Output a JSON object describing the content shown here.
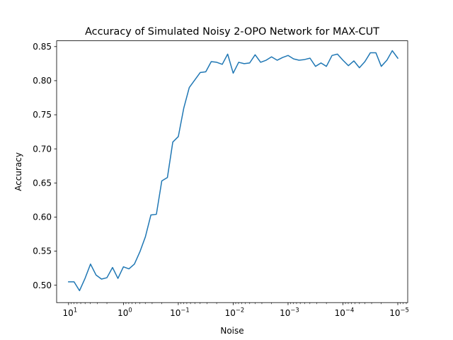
{
  "chart_data": {
    "type": "line",
    "title": "Accuracy of Simulated Noisy 2-OPO Network for MAX-CUT",
    "xlabel": "Noise",
    "ylabel": "Accuracy",
    "x_scale": "log",
    "x_axis_inverted": true,
    "xlim": [
      16.5,
      6.6e-06
    ],
    "ylim": [
      0.4745,
      0.8585
    ],
    "grid": false,
    "legend": "none",
    "line_color": "#1f77b4",
    "x_ticks": [
      {
        "base": "10",
        "exp": "1",
        "value": 10
      },
      {
        "base": "10",
        "exp": "0",
        "value": 1
      },
      {
        "base": "10",
        "exp": "−1",
        "value": 0.1
      },
      {
        "base": "10",
        "exp": "−2",
        "value": 0.01
      },
      {
        "base": "10",
        "exp": "−3",
        "value": 0.001
      },
      {
        "base": "10",
        "exp": "−4",
        "value": 0.0001
      },
      {
        "base": "10",
        "exp": "−5",
        "value": 1e-05
      }
    ],
    "y_ticks": [
      "0.50",
      "0.55",
      "0.60",
      "0.65",
      "0.70",
      "0.75",
      "0.80",
      "0.85"
    ],
    "series": [
      {
        "x": [
          10,
          7.94,
          6.31,
          5.01,
          3.98,
          3.16,
          2.51,
          2.0,
          1.58,
          1.26,
          1.0,
          0.794,
          0.631,
          0.501,
          0.398,
          0.316,
          0.251,
          0.2,
          0.158,
          0.126,
          0.1,
          0.0794,
          0.0631,
          0.0501,
          0.0398,
          0.0316,
          0.0251,
          0.02,
          0.0158,
          0.0126,
          0.01,
          0.00794,
          0.00631,
          0.00501,
          0.00398,
          0.00316,
          0.00251,
          0.002,
          0.00158,
          0.00126,
          0.001,
          0.000794,
          0.000631,
          0.000501,
          0.000398,
          0.000316,
          0.000251,
          0.0002,
          0.000158,
          0.000126,
          0.0001,
          7.94e-05,
          6.31e-05,
          5.01e-05,
          3.98e-05,
          3.16e-05,
          2.51e-05,
          2e-05,
          1.58e-05,
          1.26e-05,
          1e-05
        ],
        "y": [
          0.505,
          0.505,
          0.492,
          0.51,
          0.531,
          0.515,
          0.509,
          0.511,
          0.526,
          0.51,
          0.527,
          0.524,
          0.531,
          0.549,
          0.571,
          0.603,
          0.604,
          0.653,
          0.658,
          0.71,
          0.718,
          0.76,
          0.79,
          0.801,
          0.812,
          0.813,
          0.828,
          0.827,
          0.824,
          0.839,
          0.811,
          0.827,
          0.825,
          0.826,
          0.838,
          0.827,
          0.83,
          0.835,
          0.83,
          0.834,
          0.837,
          0.832,
          0.83,
          0.831,
          0.833,
          0.821,
          0.826,
          0.821,
          0.837,
          0.839,
          0.83,
          0.822,
          0.829,
          0.819,
          0.828,
          0.841,
          0.841,
          0.821,
          0.83,
          0.844,
          0.833
        ]
      }
    ]
  }
}
